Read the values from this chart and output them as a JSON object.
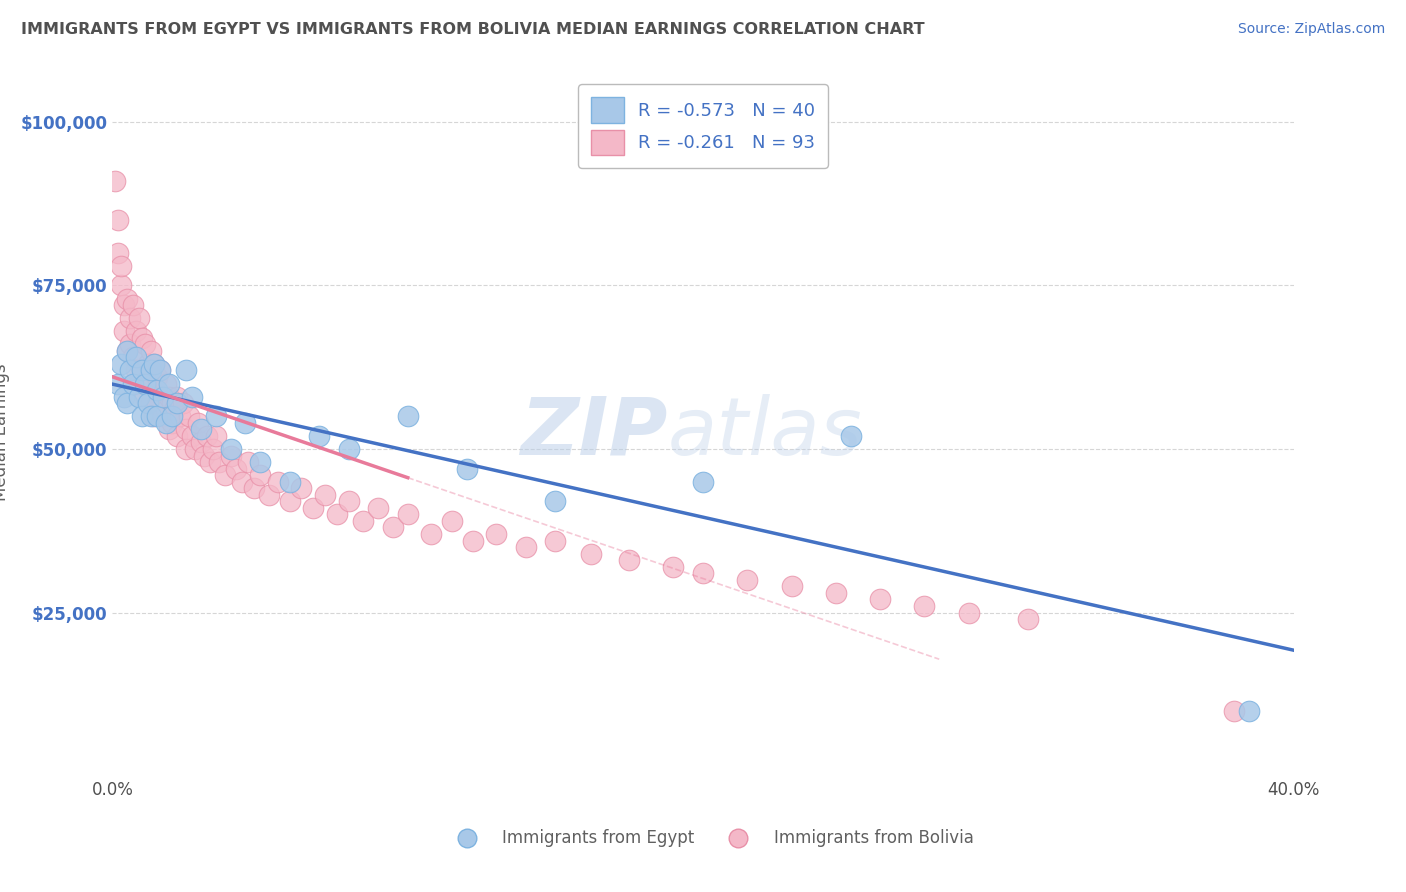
{
  "title": "IMMIGRANTS FROM EGYPT VS IMMIGRANTS FROM BOLIVIA MEDIAN EARNINGS CORRELATION CHART",
  "source": "Source: ZipAtlas.com",
  "ylabel": "Median Earnings",
  "xlim": [
    0.0,
    0.4
  ],
  "ylim": [
    0,
    105000
  ],
  "yticks": [
    0,
    25000,
    50000,
    75000,
    100000
  ],
  "ytick_labels": [
    "",
    "$25,000",
    "$50,000",
    "$75,000",
    "$100,000"
  ],
  "xticks": [
    0.0,
    0.1,
    0.2,
    0.3,
    0.4
  ],
  "xtick_labels": [
    "0.0%",
    "",
    "",
    "",
    "40.0%"
  ],
  "egypt_color": "#a8c8e8",
  "egypt_edge": "#7eb3e0",
  "bolivia_color": "#f4b8c8",
  "bolivia_edge": "#e890a8",
  "R_egypt": -0.573,
  "N_egypt": 40,
  "R_bolivia": -0.261,
  "N_bolivia": 93,
  "legend_egypt_label": "Immigrants from Egypt",
  "legend_bolivia_label": "Immigrants from Bolivia",
  "background_color": "#ffffff",
  "grid_color": "#cccccc",
  "title_color": "#505050",
  "axis_label_color": "#606060",
  "tick_label_color_x": "#505050",
  "tick_label_color_y": "#4472c4",
  "source_color": "#4472c4",
  "line_egypt_color": "#4472c4",
  "line_bolivia_color": "#e87a9a",
  "egypt_scatter_x": [
    0.002,
    0.003,
    0.004,
    0.005,
    0.005,
    0.006,
    0.007,
    0.008,
    0.009,
    0.01,
    0.01,
    0.011,
    0.012,
    0.013,
    0.013,
    0.014,
    0.015,
    0.015,
    0.016,
    0.017,
    0.018,
    0.019,
    0.02,
    0.022,
    0.025,
    0.027,
    0.03,
    0.035,
    0.04,
    0.045,
    0.05,
    0.06,
    0.07,
    0.08,
    0.1,
    0.12,
    0.15,
    0.2,
    0.25,
    0.385
  ],
  "egypt_scatter_y": [
    60000,
    63000,
    58000,
    65000,
    57000,
    62000,
    60000,
    64000,
    58000,
    62000,
    55000,
    60000,
    57000,
    62000,
    55000,
    63000,
    59000,
    55000,
    62000,
    58000,
    54000,
    60000,
    55000,
    57000,
    62000,
    58000,
    53000,
    55000,
    50000,
    54000,
    48000,
    45000,
    52000,
    50000,
    55000,
    47000,
    42000,
    45000,
    52000,
    10000
  ],
  "bolivia_scatter_x": [
    0.001,
    0.002,
    0.002,
    0.003,
    0.003,
    0.004,
    0.004,
    0.005,
    0.005,
    0.006,
    0.006,
    0.007,
    0.007,
    0.008,
    0.008,
    0.009,
    0.009,
    0.01,
    0.01,
    0.011,
    0.011,
    0.012,
    0.012,
    0.013,
    0.013,
    0.014,
    0.014,
    0.015,
    0.015,
    0.016,
    0.017,
    0.017,
    0.018,
    0.018,
    0.019,
    0.019,
    0.02,
    0.02,
    0.021,
    0.022,
    0.022,
    0.023,
    0.024,
    0.025,
    0.025,
    0.026,
    0.027,
    0.028,
    0.029,
    0.03,
    0.031,
    0.032,
    0.033,
    0.034,
    0.035,
    0.036,
    0.038,
    0.04,
    0.042,
    0.044,
    0.046,
    0.048,
    0.05,
    0.053,
    0.056,
    0.06,
    0.064,
    0.068,
    0.072,
    0.076,
    0.08,
    0.085,
    0.09,
    0.095,
    0.1,
    0.108,
    0.115,
    0.122,
    0.13,
    0.14,
    0.15,
    0.162,
    0.175,
    0.19,
    0.2,
    0.215,
    0.23,
    0.245,
    0.26,
    0.275,
    0.29,
    0.31,
    0.38
  ],
  "bolivia_scatter_y": [
    91000,
    80000,
    85000,
    75000,
    78000,
    72000,
    68000,
    73000,
    65000,
    70000,
    66000,
    72000,
    64000,
    68000,
    62000,
    70000,
    60000,
    67000,
    62000,
    66000,
    58000,
    63000,
    60000,
    65000,
    57000,
    63000,
    55000,
    61000,
    57000,
    62000,
    58000,
    55000,
    60000,
    56000,
    58000,
    53000,
    57000,
    54000,
    56000,
    58000,
    52000,
    55000,
    57000,
    53000,
    50000,
    55000,
    52000,
    50000,
    54000,
    51000,
    49000,
    52000,
    48000,
    50000,
    52000,
    48000,
    46000,
    49000,
    47000,
    45000,
    48000,
    44000,
    46000,
    43000,
    45000,
    42000,
    44000,
    41000,
    43000,
    40000,
    42000,
    39000,
    41000,
    38000,
    40000,
    37000,
    39000,
    36000,
    37000,
    35000,
    36000,
    34000,
    33000,
    32000,
    31000,
    30000,
    29000,
    28000,
    27000,
    26000,
    25000,
    24000,
    10000
  ]
}
